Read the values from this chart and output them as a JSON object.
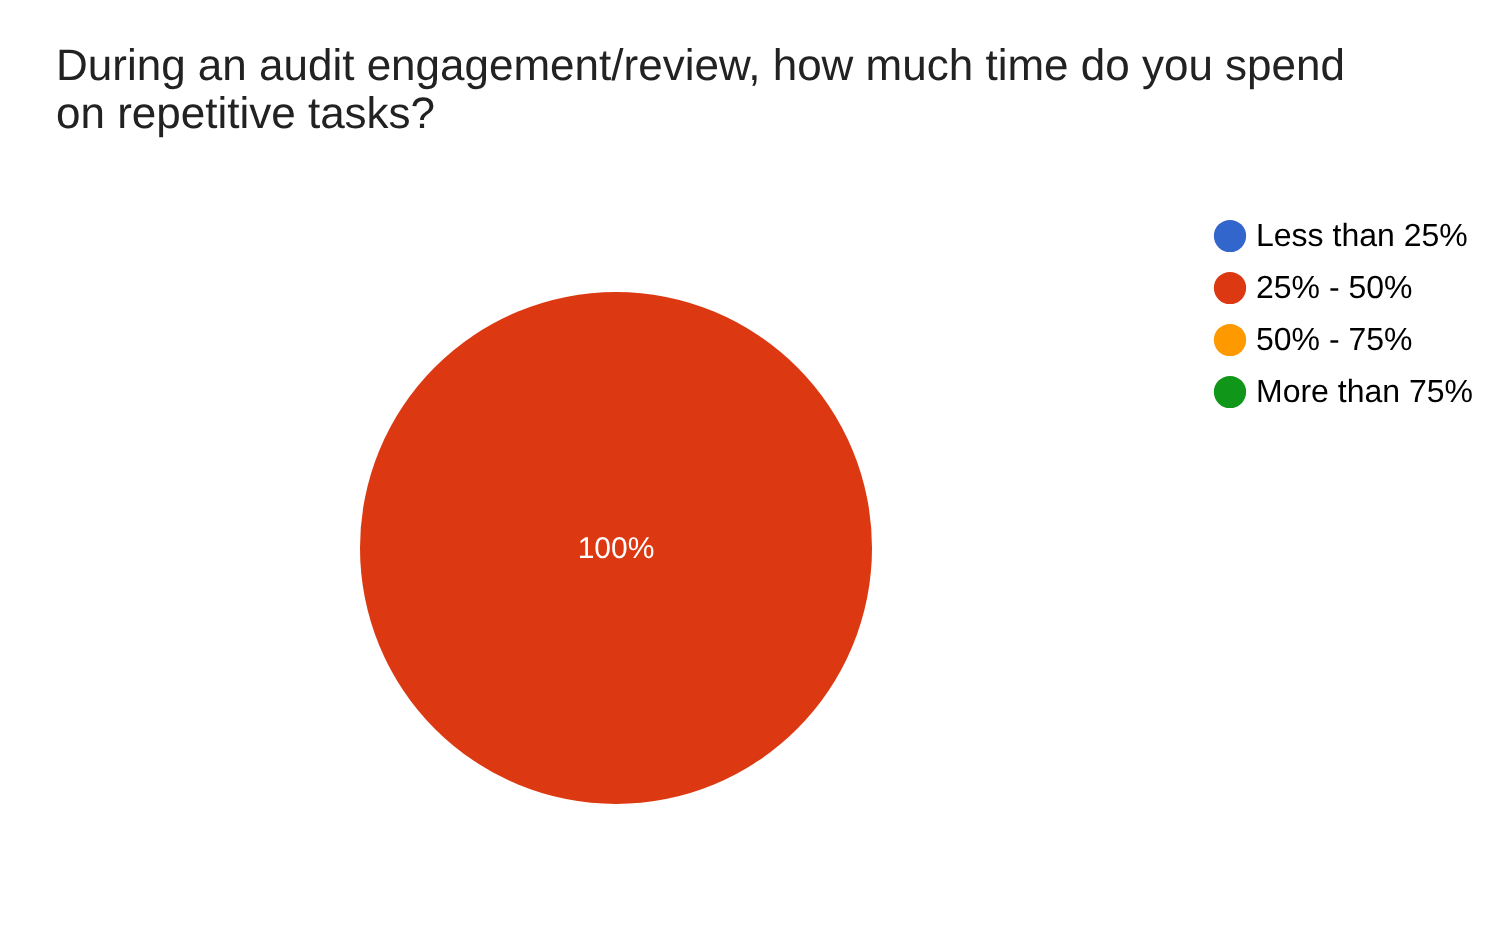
{
  "chart_data": {
    "type": "pie",
    "title": "During an audit engagement/review, how much time do you spend on repetitive tasks?",
    "categories": [
      "Less than 25%",
      "25% - 50%",
      "50% - 75%",
      "More than 75%"
    ],
    "values": [
      0,
      100,
      0,
      0
    ],
    "colors": [
      "#3366cc",
      "#dc3912",
      "#ff9900",
      "#109618"
    ],
    "value_labels": [
      null,
      "100%",
      null,
      null
    ],
    "legend": "right"
  }
}
